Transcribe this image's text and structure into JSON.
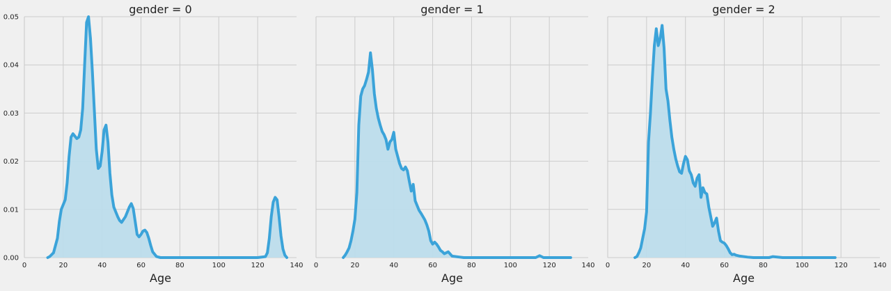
{
  "chart_data": [
    {
      "type": "area",
      "title": "gender = 0",
      "xlabel": "Age",
      "ylabel": "",
      "xlim": [
        0,
        140
      ],
      "ylim": [
        0,
        0.05
      ],
      "xticks": [
        0,
        20,
        40,
        60,
        80,
        100,
        120,
        140
      ],
      "yticks": [
        0.0,
        0.01,
        0.02,
        0.03,
        0.04,
        0.05
      ],
      "ytick_labels": [
        "0.00",
        "0.01",
        "0.02",
        "0.03",
        "0.04",
        "0.05"
      ],
      "grid": true,
      "color": "#3ba3d9",
      "fill_color": "#bcdceb",
      "x": [
        12,
        13,
        15,
        17,
        18,
        19,
        20,
        21,
        22,
        23,
        24,
        25,
        26,
        27,
        28,
        29,
        30,
        31,
        32,
        33,
        34,
        35,
        36,
        37,
        38,
        39,
        40,
        41,
        42,
        43,
        44,
        45,
        46,
        47,
        48,
        49,
        50,
        52,
        54,
        55,
        56,
        57,
        58,
        59,
        60,
        61,
        62,
        63,
        64,
        65,
        66,
        68,
        70,
        72,
        75,
        80,
        90,
        100,
        110,
        120,
        124,
        125,
        126,
        127,
        128,
        129,
        130,
        131,
        132,
        133,
        134,
        135
      ],
      "y": [
        0.0,
        0.0002,
        0.001,
        0.004,
        0.0075,
        0.01,
        0.011,
        0.012,
        0.0155,
        0.021,
        0.025,
        0.0257,
        0.0252,
        0.0247,
        0.025,
        0.0265,
        0.031,
        0.04,
        0.0488,
        0.05,
        0.0455,
        0.0385,
        0.0305,
        0.0225,
        0.0185,
        0.019,
        0.022,
        0.0265,
        0.0275,
        0.024,
        0.0175,
        0.013,
        0.0105,
        0.0095,
        0.0085,
        0.0077,
        0.0073,
        0.0085,
        0.0105,
        0.0112,
        0.0102,
        0.0075,
        0.0048,
        0.0043,
        0.0048,
        0.0055,
        0.0057,
        0.0052,
        0.004,
        0.0025,
        0.0012,
        0.0002,
        0.0,
        0.0,
        0.0,
        0.0,
        0.0,
        0.0,
        0.0,
        0.0,
        0.0002,
        0.001,
        0.004,
        0.0085,
        0.0115,
        0.0125,
        0.012,
        0.0085,
        0.0045,
        0.0018,
        0.0005,
        0.0
      ]
    },
    {
      "type": "area",
      "title": "gender = 1",
      "xlabel": "Age",
      "ylabel": "",
      "xlim": [
        0,
        140
      ],
      "ylim": [
        0,
        0.05
      ],
      "xticks": [
        0,
        20,
        40,
        60,
        80,
        100,
        120,
        140
      ],
      "yticks": [
        0.0,
        0.01,
        0.02,
        0.03,
        0.04,
        0.05
      ],
      "grid": true,
      "color": "#3ba3d9",
      "fill_color": "#bcdceb",
      "x": [
        14,
        15,
        16,
        17,
        18,
        19,
        20,
        21,
        22,
        23,
        24,
        25,
        26,
        27,
        28,
        29,
        30,
        31,
        32,
        33,
        34,
        35,
        36,
        37,
        38,
        39,
        40,
        41,
        42,
        43,
        44,
        45,
        46,
        47,
        48,
        49,
        50,
        51,
        52,
        53,
        54,
        55,
        56,
        57,
        58,
        59,
        60,
        61,
        62,
        63,
        64,
        65,
        66,
        68,
        70,
        72,
        74,
        76,
        80,
        90,
        100,
        110,
        113,
        115,
        117,
        120,
        131
      ],
      "y": [
        0.0,
        0.0005,
        0.0012,
        0.002,
        0.0035,
        0.0055,
        0.008,
        0.0135,
        0.0275,
        0.0335,
        0.035,
        0.0357,
        0.037,
        0.0385,
        0.0425,
        0.039,
        0.034,
        0.031,
        0.029,
        0.0275,
        0.0262,
        0.0255,
        0.0245,
        0.0225,
        0.024,
        0.0245,
        0.026,
        0.0225,
        0.021,
        0.0195,
        0.0185,
        0.0182,
        0.0188,
        0.018,
        0.0158,
        0.0138,
        0.0152,
        0.0118,
        0.0108,
        0.0098,
        0.0092,
        0.0085,
        0.0078,
        0.0068,
        0.0055,
        0.0035,
        0.0028,
        0.0032,
        0.0028,
        0.0022,
        0.0015,
        0.0012,
        0.0008,
        0.0012,
        0.0003,
        0.0002,
        0.0001,
        0.0,
        0.0,
        0.0,
        0.0,
        0.0,
        0.0,
        0.0004,
        0.0,
        0.0,
        0.0
      ]
    },
    {
      "type": "area",
      "title": "gender = 2",
      "xlabel": "Age",
      "ylabel": "",
      "xlim": [
        0,
        140
      ],
      "ylim": [
        0,
        0.05
      ],
      "xticks": [
        0,
        20,
        40,
        60,
        80,
        100,
        120,
        140
      ],
      "yticks": [
        0.0,
        0.01,
        0.02,
        0.03,
        0.04,
        0.05
      ],
      "grid": true,
      "color": "#3ba3d9",
      "fill_color": "#bcdceb",
      "x": [
        14,
        15,
        16,
        17,
        18,
        19,
        20,
        21,
        22,
        23,
        24,
        25,
        26,
        27,
        28,
        29,
        30,
        31,
        32,
        33,
        34,
        35,
        36,
        37,
        38,
        39,
        40,
        41,
        42,
        43,
        44,
        45,
        46,
        47,
        48,
        49,
        50,
        51,
        52,
        53,
        54,
        55,
        56,
        57,
        58,
        59,
        60,
        61,
        62,
        63,
        64,
        65,
        66,
        68,
        70,
        72,
        75,
        80,
        83,
        85,
        90,
        100,
        110,
        117
      ],
      "y": [
        0.0,
        0.0002,
        0.001,
        0.002,
        0.004,
        0.006,
        0.0095,
        0.024,
        0.03,
        0.0375,
        0.044,
        0.0475,
        0.044,
        0.0455,
        0.0482,
        0.0435,
        0.035,
        0.0325,
        0.0285,
        0.025,
        0.0225,
        0.0205,
        0.019,
        0.0178,
        0.0175,
        0.0195,
        0.021,
        0.0203,
        0.018,
        0.0172,
        0.0155,
        0.0148,
        0.0165,
        0.0172,
        0.0125,
        0.0145,
        0.0135,
        0.0132,
        0.0105,
        0.0085,
        0.0065,
        0.0072,
        0.0082,
        0.0055,
        0.0035,
        0.0032,
        0.003,
        0.0025,
        0.0018,
        0.001,
        0.0006,
        0.0007,
        0.0005,
        0.0003,
        0.0002,
        0.0001,
        0.0,
        0.0,
        0.0,
        0.0002,
        0.0,
        0.0,
        0.0,
        0.0
      ]
    }
  ]
}
